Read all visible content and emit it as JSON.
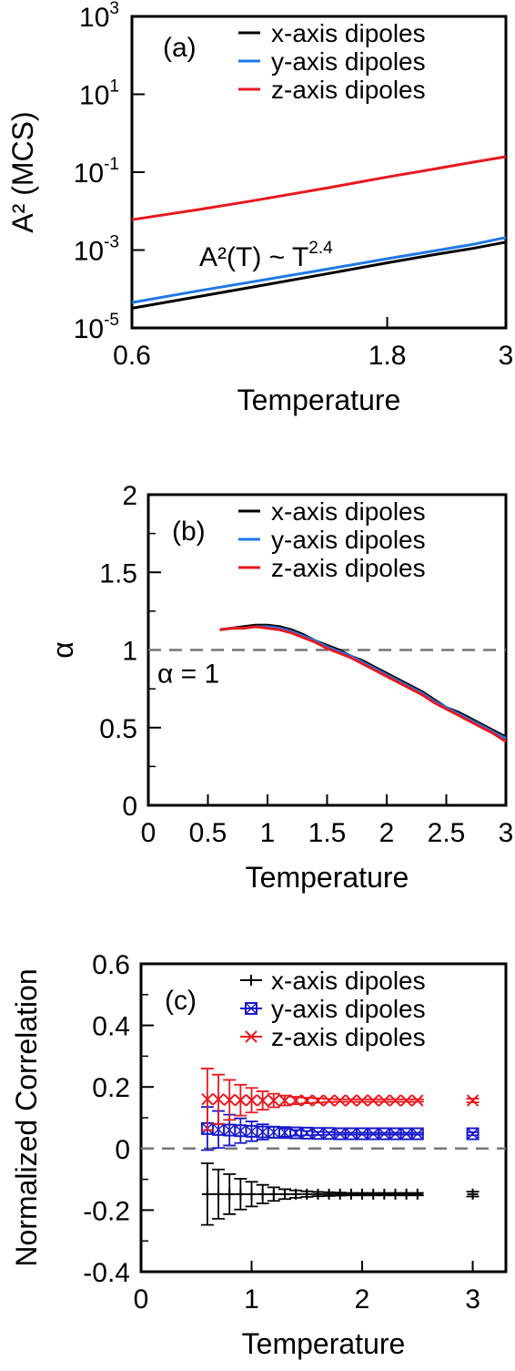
{
  "chart_data": [
    {
      "type": "line",
      "panel_label": "(a)",
      "xlabel": "Temperature",
      "ylabel": "A² (MCS)",
      "xscale": "log",
      "yscale": "log",
      "xlim": [
        0.6,
        3
      ],
      "ylim": [
        1e-05,
        1000
      ],
      "xticks": [
        0.6,
        1.8,
        3
      ],
      "xtick_labels": [
        "0.6",
        "1.8",
        "3"
      ],
      "yticks": [
        1e-05,
        0.001,
        0.1,
        10,
        1000
      ],
      "ytick_labels": [
        {
          "base": "10",
          "exp": "-5"
        },
        {
          "base": "10",
          "exp": "-3"
        },
        {
          "base": "10",
          "exp": "-1"
        },
        {
          "base": "10",
          "exp": "1"
        },
        {
          "base": "10",
          "exp": "3"
        }
      ],
      "legend_position": "top-right",
      "annotation": {
        "main": "A²(T) ~ T",
        "exp": "2.4"
      },
      "series": [
        {
          "name": "x-axis dipoles",
          "color": "#000000",
          "x": [
            0.6,
            0.8,
            1.0,
            1.4,
            1.8,
            2.2,
            2.6,
            3.0
          ],
          "y": [
            3.2e-05,
            6.4e-05,
            0.00011,
            0.00025,
            0.00047,
            0.00076,
            0.0011,
            0.0016
          ]
        },
        {
          "name": "y-axis dipoles",
          "color": "#1f78e8",
          "x": [
            0.6,
            0.8,
            1.0,
            1.4,
            1.8,
            2.2,
            2.6,
            3.0
          ],
          "y": [
            4.5e-05,
            9e-05,
            0.00015,
            0.00033,
            0.0006,
            0.00095,
            0.0014,
            0.0021
          ]
        },
        {
          "name": "z-axis dipoles",
          "color": "#e8191f",
          "x": [
            0.6,
            0.8,
            1.0,
            1.4,
            1.8,
            2.2,
            2.6,
            3.0
          ],
          "y": [
            0.006,
            0.011,
            0.018,
            0.04,
            0.075,
            0.12,
            0.18,
            0.25
          ]
        }
      ]
    },
    {
      "type": "line",
      "panel_label": "(b)",
      "xlabel": "Temperature",
      "ylabel": "α",
      "xlim": [
        0,
        3
      ],
      "ylim": [
        0,
        2
      ],
      "xticks": [
        0,
        0.5,
        1,
        1.5,
        2,
        2.5,
        3
      ],
      "xtick_labels": [
        "0",
        "0.5",
        "1",
        "1.5",
        "2",
        "2.5",
        "3"
      ],
      "yticks": [
        0,
        0.5,
        1,
        1.5,
        2
      ],
      "ytick_labels": [
        "0",
        "0.5",
        "1",
        "1.5",
        "2"
      ],
      "legend_position": "top-right",
      "reference_line": {
        "y": 1,
        "label": "α = 1"
      },
      "series": [
        {
          "name": "x-axis dipoles",
          "color": "#000000",
          "x": [
            0.6,
            0.7,
            0.8,
            0.9,
            1.0,
            1.1,
            1.2,
            1.3,
            1.4,
            1.5,
            1.6,
            1.7,
            1.8,
            1.9,
            2.0,
            2.1,
            2.2,
            2.3,
            2.4,
            2.5,
            2.6,
            2.7,
            2.8,
            2.9,
            3.0
          ],
          "y": [
            1.13,
            1.14,
            1.15,
            1.16,
            1.16,
            1.15,
            1.13,
            1.1,
            1.06,
            1.03,
            1.0,
            0.96,
            0.93,
            0.89,
            0.85,
            0.81,
            0.77,
            0.73,
            0.68,
            0.63,
            0.6,
            0.56,
            0.52,
            0.48,
            0.44
          ]
        },
        {
          "name": "y-axis dipoles",
          "color": "#1f78e8",
          "x": [
            0.6,
            0.7,
            0.8,
            0.9,
            1.0,
            1.1,
            1.2,
            1.3,
            1.4,
            1.5,
            1.6,
            1.7,
            1.8,
            1.9,
            2.0,
            2.1,
            2.2,
            2.3,
            2.4,
            2.5,
            2.6,
            2.7,
            2.8,
            2.9,
            3.0
          ],
          "y": [
            1.13,
            1.14,
            1.14,
            1.15,
            1.15,
            1.14,
            1.12,
            1.09,
            1.06,
            1.02,
            0.99,
            0.96,
            0.92,
            0.88,
            0.84,
            0.8,
            0.76,
            0.72,
            0.67,
            0.63,
            0.59,
            0.55,
            0.51,
            0.47,
            0.43
          ]
        },
        {
          "name": "z-axis dipoles",
          "color": "#e8191f",
          "x": [
            0.6,
            0.7,
            0.8,
            0.9,
            1.0,
            1.1,
            1.2,
            1.3,
            1.4,
            1.5,
            1.6,
            1.7,
            1.8,
            1.9,
            2.0,
            2.1,
            2.2,
            2.3,
            2.4,
            2.5,
            2.6,
            2.7,
            2.8,
            2.9,
            3.0
          ],
          "y": [
            1.13,
            1.14,
            1.14,
            1.15,
            1.14,
            1.13,
            1.11,
            1.08,
            1.05,
            1.01,
            0.98,
            0.95,
            0.91,
            0.87,
            0.83,
            0.79,
            0.75,
            0.71,
            0.66,
            0.62,
            0.58,
            0.54,
            0.5,
            0.46,
            0.41
          ]
        }
      ]
    },
    {
      "type": "scatter",
      "panel_label": "(c)",
      "xlabel": "Temperature",
      "ylabel": "Normalized Correlation",
      "xlim": [
        0,
        3.3
      ],
      "ylim": [
        -0.4,
        0.6
      ],
      "xticks": [
        0,
        1,
        2,
        3
      ],
      "xtick_labels": [
        "0",
        "1",
        "2",
        "3"
      ],
      "yticks": [
        -0.4,
        -0.2,
        0,
        0.2,
        0.4,
        0.6
      ],
      "ytick_labels": [
        "-0.4",
        "-0.2",
        "0",
        "0.2",
        "0.4",
        "0.6"
      ],
      "legend_position": "top-right",
      "reference_line": {
        "y": 0
      },
      "series": [
        {
          "name": "x-axis dipoles",
          "color": "#000000",
          "marker": "plus",
          "x": [
            0.6,
            0.7,
            0.8,
            0.9,
            1.0,
            1.1,
            1.2,
            1.3,
            1.4,
            1.5,
            1.6,
            1.7,
            1.8,
            1.9,
            2.0,
            2.1,
            2.2,
            2.3,
            2.4,
            2.5,
            3.0
          ],
          "y": [
            -0.148,
            -0.148,
            -0.148,
            -0.148,
            -0.148,
            -0.148,
            -0.148,
            -0.148,
            -0.148,
            -0.148,
            -0.148,
            -0.148,
            -0.148,
            -0.148,
            -0.148,
            -0.148,
            -0.148,
            -0.148,
            -0.148,
            -0.148,
            -0.148
          ],
          "err": [
            0.1,
            0.08,
            0.065,
            0.05,
            0.04,
            0.03,
            0.022,
            0.016,
            0.012,
            0.009,
            0.007,
            0.006,
            0.005,
            0.004,
            0.004,
            0.004,
            0.004,
            0.004,
            0.004,
            0.004,
            0.008
          ]
        },
        {
          "name": "y-axis dipoles",
          "color": "#1a1acc",
          "marker": "square-x",
          "x": [
            0.6,
            0.7,
            0.8,
            0.9,
            1.0,
            1.1,
            1.2,
            1.3,
            1.4,
            1.5,
            1.6,
            1.7,
            1.8,
            1.9,
            2.0,
            2.1,
            2.2,
            2.3,
            2.4,
            2.5,
            3.0
          ],
          "y": [
            0.065,
            0.062,
            0.06,
            0.058,
            0.056,
            0.054,
            0.053,
            0.052,
            0.051,
            0.05,
            0.049,
            0.049,
            0.048,
            0.048,
            0.048,
            0.048,
            0.048,
            0.048,
            0.048,
            0.048,
            0.048
          ],
          "err": [
            0.07,
            0.06,
            0.05,
            0.04,
            0.032,
            0.025,
            0.018,
            0.013,
            0.009,
            0.007,
            0.005,
            0.004,
            0.003,
            0.003,
            0.003,
            0.003,
            0.003,
            0.003,
            0.003,
            0.003,
            0.005
          ]
        },
        {
          "name": "z-axis dipoles",
          "color": "#e8191f",
          "marker": "cross",
          "x": [
            0.6,
            0.7,
            0.8,
            0.9,
            1.0,
            1.1,
            1.2,
            1.3,
            1.4,
            1.5,
            1.6,
            1.7,
            1.8,
            1.9,
            2.0,
            2.1,
            2.2,
            2.3,
            2.4,
            2.5,
            3.0
          ],
          "y": [
            0.16,
            0.16,
            0.158,
            0.157,
            0.157,
            0.156,
            0.156,
            0.156,
            0.156,
            0.156,
            0.156,
            0.156,
            0.156,
            0.156,
            0.156,
            0.156,
            0.156,
            0.156,
            0.156,
            0.156,
            0.156
          ],
          "err": [
            0.1,
            0.08,
            0.065,
            0.05,
            0.04,
            0.03,
            0.022,
            0.016,
            0.012,
            0.009,
            0.007,
            0.005,
            0.004,
            0.004,
            0.004,
            0.004,
            0.004,
            0.004,
            0.004,
            0.004,
            0.006
          ]
        }
      ]
    }
  ]
}
